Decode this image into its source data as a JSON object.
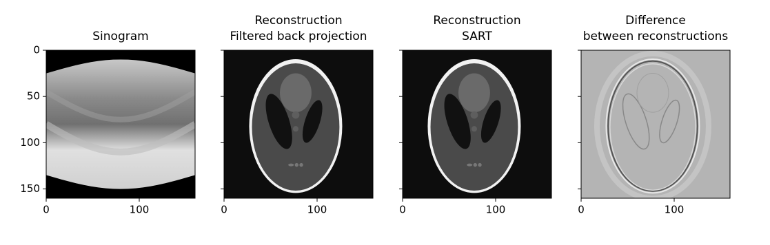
{
  "chart_data": [
    {
      "type": "image",
      "title": [
        "Sinogram"
      ],
      "image": "sinogram",
      "xlim": [
        0,
        160
      ],
      "ylim": [
        160,
        0
      ],
      "xticks": [
        0,
        100
      ],
      "yticks": [
        0,
        50,
        100,
        150
      ],
      "show_ytick_labels": true
    },
    {
      "type": "image",
      "title": [
        "Reconstruction",
        "Filtered back projection"
      ],
      "image": "phantom",
      "xlim": [
        0,
        160
      ],
      "ylim": [
        160,
        0
      ],
      "xticks": [
        0,
        100
      ],
      "yticks": [
        0,
        50,
        100,
        150
      ],
      "show_ytick_labels": false
    },
    {
      "type": "image",
      "title": [
        "Reconstruction",
        "SART"
      ],
      "image": "phantom",
      "xlim": [
        0,
        160
      ],
      "ylim": [
        160,
        0
      ],
      "xticks": [
        0,
        100
      ],
      "yticks": [
        0,
        50,
        100,
        150
      ],
      "show_ytick_labels": false
    },
    {
      "type": "image",
      "title": [
        "Difference",
        "between reconstructions"
      ],
      "image": "difference",
      "xlim": [
        0,
        160
      ],
      "ylim": [
        160,
        0
      ],
      "xticks": [
        0,
        100
      ],
      "yticks": [
        0,
        50,
        100,
        150
      ],
      "show_ytick_labels": false
    }
  ]
}
